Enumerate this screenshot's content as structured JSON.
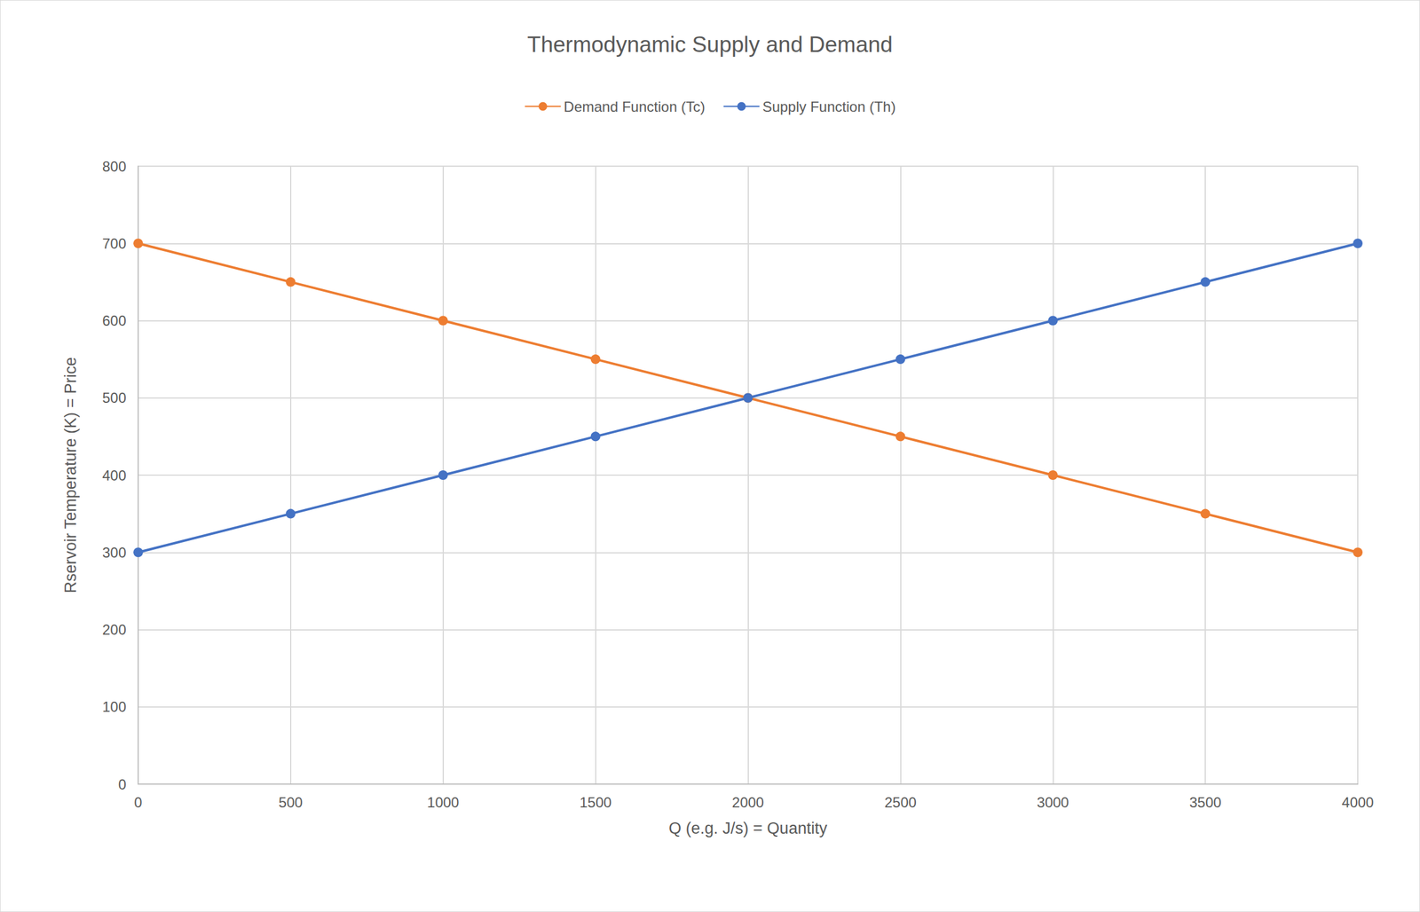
{
  "chart_data": {
    "type": "line",
    "title": "Thermodynamic Supply and Demand",
    "x_label": "Q (e.g. J/s) = Quantity",
    "y_label": "Rservoir Temperature (K) = Price",
    "x": [
      0,
      500,
      1000,
      1500,
      2000,
      2500,
      3000,
      3500,
      4000
    ],
    "series": [
      {
        "name": "Demand Function (Tc)",
        "color": "#ed7d31",
        "marker": "circle",
        "values": [
          700,
          650,
          600,
          550,
          500,
          450,
          400,
          350,
          300
        ]
      },
      {
        "name": "Supply Function (Th)",
        "color": "#4472c4",
        "marker": "circle",
        "values": [
          300,
          350,
          400,
          450,
          500,
          550,
          600,
          650,
          700
        ]
      }
    ],
    "xlim": [
      0,
      4000
    ],
    "xticks": [
      0,
      500,
      1000,
      1500,
      2000,
      2500,
      3000,
      3500,
      4000
    ],
    "ylim": [
      0,
      800
    ],
    "yticks": [
      0,
      100,
      200,
      300,
      400,
      500,
      600,
      700,
      800
    ],
    "grid": true,
    "legend": "top"
  }
}
